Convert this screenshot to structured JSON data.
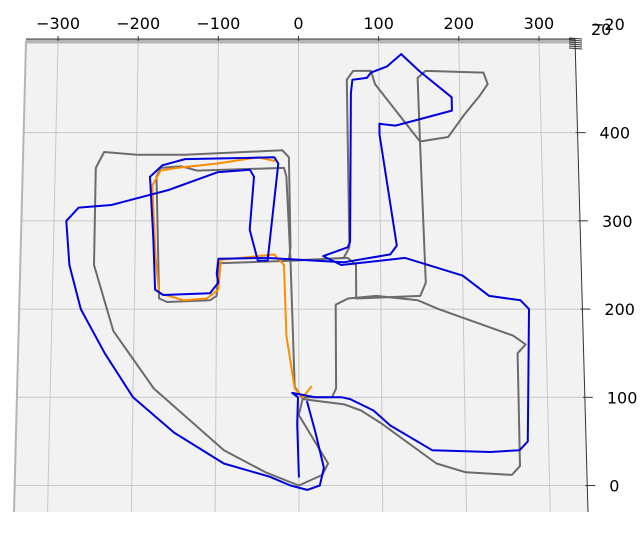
{
  "chart_data": {
    "type": "line",
    "projection": "3d-top-view",
    "title": "",
    "xlabel": "",
    "ylabel": "",
    "xlim": [
      -340,
      345
    ],
    "ylim": [
      -30,
      505
    ],
    "x_ticks": [
      "−300",
      "−200",
      "−100",
      "0",
      "100",
      "200",
      "300"
    ],
    "x_tick_values": [
      -300,
      -200,
      -100,
      0,
      100,
      200,
      300
    ],
    "y_ticks": [
      "0",
      "100",
      "200",
      "300",
      "400"
    ],
    "y_tick_values": [
      0,
      100,
      200,
      300,
      400
    ],
    "z_ticks": [
      "−20",
      "20"
    ],
    "grid": true,
    "legend": "none",
    "series": [
      {
        "color": "#6b6b6b",
        "points": [
          [
            0,
            0
          ],
          [
            -40,
            15
          ],
          [
            -90,
            40
          ],
          [
            -175,
            110
          ],
          [
            -225,
            175
          ],
          [
            -250,
            250
          ],
          [
            -250,
            360
          ],
          [
            -240,
            378
          ],
          [
            -200,
            375
          ],
          [
            -140,
            375
          ],
          [
            -20,
            380
          ],
          [
            -12,
            372
          ],
          [
            -10,
            270
          ],
          [
            -12,
            255
          ],
          [
            60,
            258
          ],
          [
            70,
            250
          ],
          [
            70,
            212
          ],
          [
            148,
            215
          ],
          [
            155,
            230
          ],
          [
            150,
            390
          ],
          [
            148,
            462
          ],
          [
            158,
            470
          ],
          [
            230,
            468
          ],
          [
            235,
            455
          ],
          [
            225,
            442
          ],
          [
            205,
            420
          ],
          [
            185,
            395
          ],
          [
            150,
            390
          ],
          [
            95,
            455
          ],
          [
            90,
            470
          ],
          [
            68,
            470
          ],
          [
            60,
            460
          ],
          [
            62,
            270
          ],
          [
            55,
            258
          ],
          [
            -5,
            255
          ],
          [
            -98,
            252
          ],
          [
            -100,
            215
          ],
          [
            -108,
            210
          ],
          [
            -160,
            208
          ],
          [
            -170,
            212
          ],
          [
            -175,
            350
          ],
          [
            -170,
            360
          ],
          [
            -145,
            362
          ],
          [
            -125,
            357
          ],
          [
            -18,
            360
          ],
          [
            -15,
            350
          ],
          [
            -10,
            255
          ],
          [
            -5,
            112
          ],
          [
            5,
            98
          ],
          [
            55,
            92
          ],
          [
            75,
            85
          ],
          [
            100,
            70
          ],
          [
            165,
            25
          ],
          [
            200,
            15
          ],
          [
            255,
            12
          ],
          [
            265,
            22
          ],
          [
            265,
            150
          ],
          [
            275,
            160
          ],
          [
            260,
            170
          ],
          [
            170,
            200
          ],
          [
            145,
            210
          ],
          [
            95,
            215
          ],
          [
            60,
            212
          ],
          [
            45,
            205
          ],
          [
            45,
            180
          ],
          [
            45,
            110
          ],
          [
            40,
            100
          ],
          [
            5,
            100
          ],
          [
            0,
            80
          ],
          [
            35,
            25
          ],
          [
            28,
            12
          ],
          [
            0,
            0
          ]
        ]
      },
      {
        "color": "#ff8c00",
        "points": [
          [
            15,
            112
          ],
          [
            5,
            100
          ],
          [
            -5,
            110
          ],
          [
            -15,
            170
          ],
          [
            -18,
            250
          ],
          [
            -30,
            262
          ],
          [
            -70,
            258
          ],
          [
            -95,
            256
          ],
          [
            -98,
            222
          ],
          [
            -112,
            212
          ],
          [
            -140,
            210
          ],
          [
            -170,
            218
          ],
          [
            -175,
            260
          ],
          [
            -180,
            340
          ],
          [
            -170,
            357
          ],
          [
            -150,
            360
          ],
          [
            -100,
            365
          ],
          [
            -50,
            372
          ],
          [
            -30,
            368
          ]
        ]
      },
      {
        "color": "#0000dd",
        "points": [
          [
            0,
            10
          ],
          [
            -2,
            70
          ],
          [
            -1,
            100
          ],
          [
            -8,
            105
          ],
          [
            20,
            100
          ],
          [
            52,
            100
          ],
          [
            62,
            98
          ],
          [
            90,
            85
          ],
          [
            110,
            68
          ],
          [
            160,
            40
          ],
          [
            230,
            38
          ],
          [
            265,
            40
          ],
          [
            275,
            50
          ],
          [
            280,
            200
          ],
          [
            270,
            210
          ],
          [
            232,
            215
          ],
          [
            200,
            238
          ],
          [
            130,
            258
          ],
          [
            52,
            250
          ],
          [
            30,
            260
          ],
          [
            60,
            270
          ],
          [
            63,
            276
          ],
          [
            65,
            445
          ],
          [
            67,
            460
          ],
          [
            85,
            462
          ],
          [
            90,
            468
          ],
          [
            110,
            475
          ],
          [
            128,
            489
          ],
          [
            150,
            470
          ],
          [
            190,
            440
          ],
          [
            190,
            425
          ],
          [
            120,
            408
          ],
          [
            100,
            410
          ],
          [
            100,
            398
          ],
          [
            120,
            272
          ],
          [
            112,
            262
          ],
          [
            55,
            253
          ],
          [
            -40,
            258
          ],
          [
            -98,
            257
          ],
          [
            -100,
            240
          ],
          [
            -98,
            230
          ],
          [
            -108,
            218
          ],
          [
            -165,
            216
          ],
          [
            -175,
            222
          ],
          [
            -178,
            280
          ],
          [
            -183,
            350
          ],
          [
            -176,
            356
          ],
          [
            -168,
            363
          ],
          [
            -140,
            370
          ],
          [
            -30,
            372
          ],
          [
            -25,
            365
          ],
          [
            -38,
            255
          ],
          [
            -50,
            255
          ],
          [
            -60,
            290
          ],
          [
            -55,
            350
          ],
          [
            -60,
            358
          ],
          [
            -100,
            355
          ],
          [
            -160,
            335
          ],
          [
            -230,
            318
          ],
          [
            -270,
            315
          ],
          [
            -285,
            300
          ],
          [
            -280,
            250
          ],
          [
            -265,
            200
          ],
          [
            -235,
            150
          ],
          [
            -200,
            100
          ],
          [
            -150,
            60
          ],
          [
            -90,
            25
          ],
          [
            -35,
            10
          ],
          [
            -10,
            0
          ],
          [
            10,
            -5
          ],
          [
            25,
            0
          ],
          [
            30,
            20
          ],
          [
            20,
            60
          ],
          [
            10,
            95
          ]
        ]
      }
    ]
  }
}
